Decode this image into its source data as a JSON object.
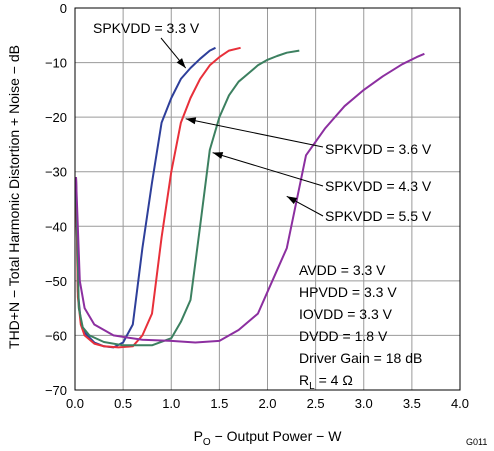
{
  "chart_data": {
    "type": "line",
    "title": "",
    "xlabel": {
      "main": "P",
      "sub": "O",
      "rest": " − Output Power − W"
    },
    "ylabel": "THD+N − Total Harmonic Distortion + Noise − dB",
    "xlim": [
      0,
      4
    ],
    "ylim": [
      -70,
      0
    ],
    "x_ticks": [
      0,
      0.5,
      1,
      1.5,
      2,
      2.5,
      3,
      3.5,
      4
    ],
    "x_tick_labels": [
      "0.0",
      "0.5",
      "1.0",
      "1.5",
      "2.0",
      "2.5",
      "3.0",
      "3.5",
      "4.0"
    ],
    "y_ticks": [
      0,
      -10,
      -20,
      -30,
      -40,
      -50,
      -60,
      -70
    ],
    "y_tick_labels": [
      "0",
      "−10",
      "−20",
      "−30",
      "−40",
      "−50",
      "−60",
      "−70"
    ],
    "grid": true,
    "series": [
      {
        "name": "SPKVDD = 3.3 V",
        "color": "#2e3f9a",
        "points": [
          [
            0.01,
            -31
          ],
          [
            0.03,
            -52
          ],
          [
            0.06,
            -57.5
          ],
          [
            0.1,
            -59.5
          ],
          [
            0.2,
            -61.3
          ],
          [
            0.3,
            -62
          ],
          [
            0.4,
            -62.2
          ],
          [
            0.5,
            -61.3
          ],
          [
            0.6,
            -58
          ],
          [
            0.7,
            -44
          ],
          [
            0.8,
            -32
          ],
          [
            0.9,
            -21
          ],
          [
            1.0,
            -16.5
          ],
          [
            1.1,
            -13
          ],
          [
            1.2,
            -11
          ],
          [
            1.3,
            -9.3
          ],
          [
            1.4,
            -7.8
          ],
          [
            1.46,
            -7.3
          ]
        ]
      },
      {
        "name": "SPKVDD = 3.6 V",
        "color": "#e8303a",
        "points": [
          [
            0.01,
            -31
          ],
          [
            0.03,
            -53
          ],
          [
            0.06,
            -58
          ],
          [
            0.1,
            -60
          ],
          [
            0.2,
            -61.5
          ],
          [
            0.3,
            -62
          ],
          [
            0.45,
            -62.2
          ],
          [
            0.6,
            -62
          ],
          [
            0.7,
            -60
          ],
          [
            0.8,
            -56
          ],
          [
            0.9,
            -42
          ],
          [
            1.0,
            -30
          ],
          [
            1.1,
            -21
          ],
          [
            1.2,
            -16.5
          ],
          [
            1.3,
            -13
          ],
          [
            1.4,
            -10.5
          ],
          [
            1.5,
            -9
          ],
          [
            1.6,
            -7.8
          ],
          [
            1.72,
            -7.3
          ]
        ]
      },
      {
        "name": "SPKVDD = 4.3 V",
        "color": "#3c8060",
        "points": [
          [
            0.01,
            -31
          ],
          [
            0.04,
            -55
          ],
          [
            0.08,
            -58.5
          ],
          [
            0.15,
            -60
          ],
          [
            0.3,
            -61.2
          ],
          [
            0.5,
            -61.8
          ],
          [
            0.8,
            -61.8
          ],
          [
            1.0,
            -60.5
          ],
          [
            1.1,
            -57.5
          ],
          [
            1.2,
            -53.5
          ],
          [
            1.3,
            -40
          ],
          [
            1.4,
            -26
          ],
          [
            1.5,
            -20
          ],
          [
            1.6,
            -16
          ],
          [
            1.7,
            -13.5
          ],
          [
            1.8,
            -12
          ],
          [
            1.9,
            -10.5
          ],
          [
            2.0,
            -9.5
          ],
          [
            2.1,
            -8.8
          ],
          [
            2.2,
            -8.2
          ],
          [
            2.33,
            -7.8
          ]
        ]
      },
      {
        "name": "SPKVDD = 5.5 V",
        "color": "#8c2fa0",
        "points": [
          [
            0.01,
            -31
          ],
          [
            0.05,
            -50
          ],
          [
            0.1,
            -55
          ],
          [
            0.2,
            -58
          ],
          [
            0.4,
            -60
          ],
          [
            0.7,
            -60.8
          ],
          [
            1.0,
            -61
          ],
          [
            1.25,
            -61.3
          ],
          [
            1.5,
            -61
          ],
          [
            1.7,
            -59
          ],
          [
            1.9,
            -56
          ],
          [
            2.0,
            -52
          ],
          [
            2.2,
            -44
          ],
          [
            2.4,
            -27
          ],
          [
            2.6,
            -22
          ],
          [
            2.8,
            -18
          ],
          [
            3.0,
            -15
          ],
          [
            3.2,
            -12.5
          ],
          [
            3.4,
            -10.3
          ],
          [
            3.55,
            -9
          ],
          [
            3.63,
            -8.4
          ]
        ]
      }
    ],
    "annotations": [
      {
        "text": "SPKVDD = 3.3 V",
        "series": 0,
        "at": [
          1.15,
          -11
        ]
      },
      {
        "text": "SPKVDD = 3.6 V",
        "series": 1,
        "at": [
          1.15,
          -20.3
        ]
      },
      {
        "text": "SPKVDD = 4.3 V",
        "series": 2,
        "at": [
          1.43,
          -26.5
        ]
      },
      {
        "text": "SPKVDD = 5.5 V",
        "series": 3,
        "at": [
          2.2,
          -34.5
        ]
      }
    ],
    "conditions": [
      {
        "text": "AVDD = 3.3 V"
      },
      {
        "text": "HPVDD = 3.3 V"
      },
      {
        "text": "IOVDD = 3.3 V"
      },
      {
        "text": "DVDD = 1.8 V"
      },
      {
        "text": "Driver Gain = 18 dB"
      },
      {
        "main": "R",
        "sub": "L",
        "rest": " = 4 Ω"
      }
    ],
    "figure_id": "G011"
  }
}
